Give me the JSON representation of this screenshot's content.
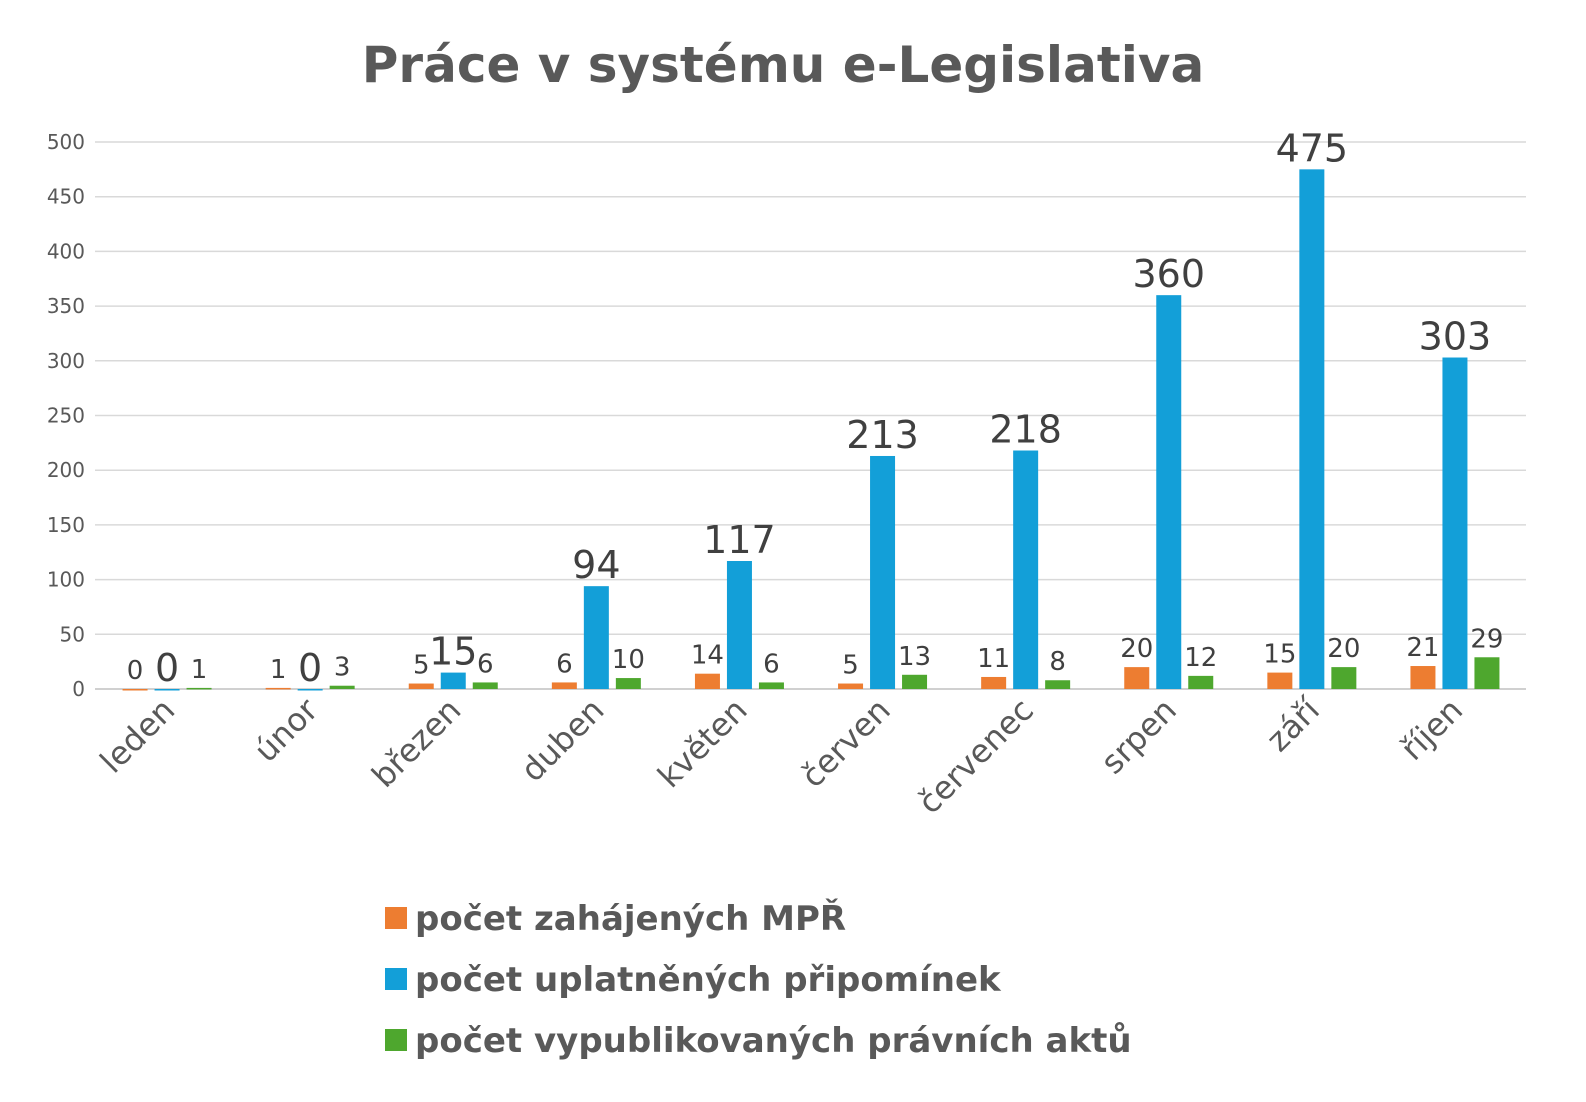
{
  "chart_data": {
    "type": "bar",
    "title": "Práce v systému e-Legislativa",
    "xlabel": "",
    "ylabel": "",
    "ylim": [
      0,
      500
    ],
    "yticks": [
      0,
      50,
      100,
      150,
      200,
      250,
      300,
      350,
      400,
      450,
      500
    ],
    "grid": true,
    "legend_position": "bottom",
    "categories": [
      "leden",
      "únor",
      "březen",
      "duben",
      "květen",
      "červen",
      "červenec",
      "srpen",
      "září",
      "říjen"
    ],
    "series": [
      {
        "name": "počet zahájených MPŘ",
        "color": "#ED7D31",
        "values": [
          0,
          1,
          5,
          6,
          14,
          5,
          11,
          20,
          15,
          21
        ]
      },
      {
        "name": "počet uplatněných připomínek",
        "color": "#139FD8",
        "values": [
          0,
          0,
          15,
          94,
          117,
          213,
          218,
          360,
          475,
          303
        ]
      },
      {
        "name": "počet vypublikovaných právních aktů",
        "color": "#4EA72E",
        "values": [
          1,
          3,
          6,
          10,
          6,
          13,
          8,
          12,
          20,
          29
        ]
      }
    ]
  }
}
